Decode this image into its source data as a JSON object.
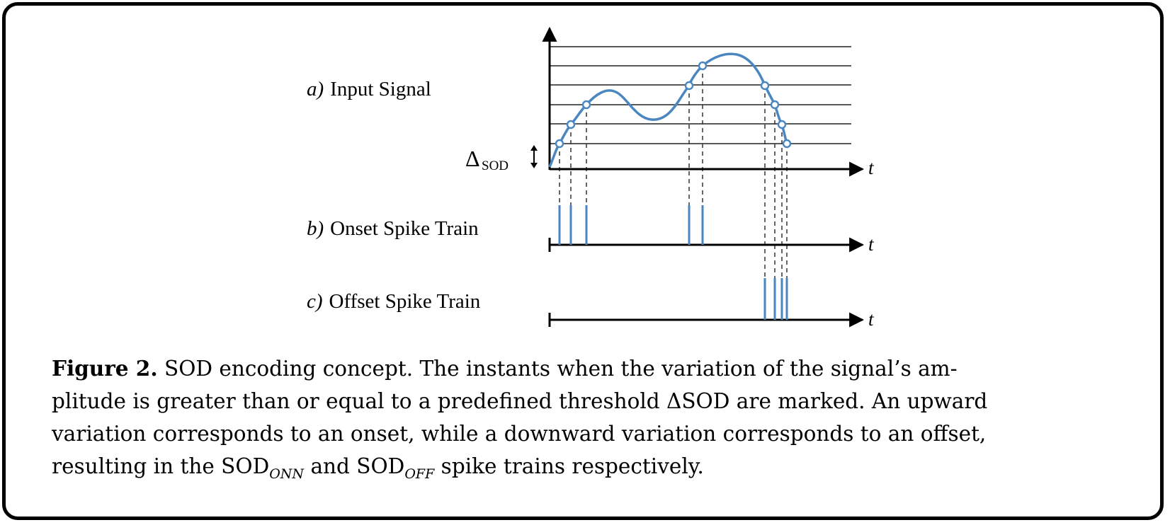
{
  "figure": {
    "panels": [
      {
        "letter": "a)",
        "title": "Input Signal"
      },
      {
        "letter": "b)",
        "title": "Onset Spike Train"
      },
      {
        "letter": "c)",
        "title": "Offset Spike Train"
      }
    ],
    "delta_label": "Δ",
    "delta_sub": "SOD",
    "time_label": "t",
    "colors": {
      "signal": "#4a86c0",
      "axis": "#000000",
      "threshold": "#222222"
    },
    "threshold_levels": 6,
    "onset_count": 5,
    "offset_count": 4
  },
  "caption": {
    "label": "Figure 2.",
    "lines": [
      "SOD encoding concept. The instants when the variation of the signal’s am-",
      "plitude is greater than or equal to a predefined threshold ΔSOD are marked. An upward",
      "variation corresponds to an onset, while a downward variation corresponds to an offset,"
    ],
    "last_pre": "resulting in the SOD",
    "sub_onn": "ONN",
    "last_mid": " and SOD",
    "sub_off": "OFF",
    "last_post": " spike trains respectively."
  }
}
